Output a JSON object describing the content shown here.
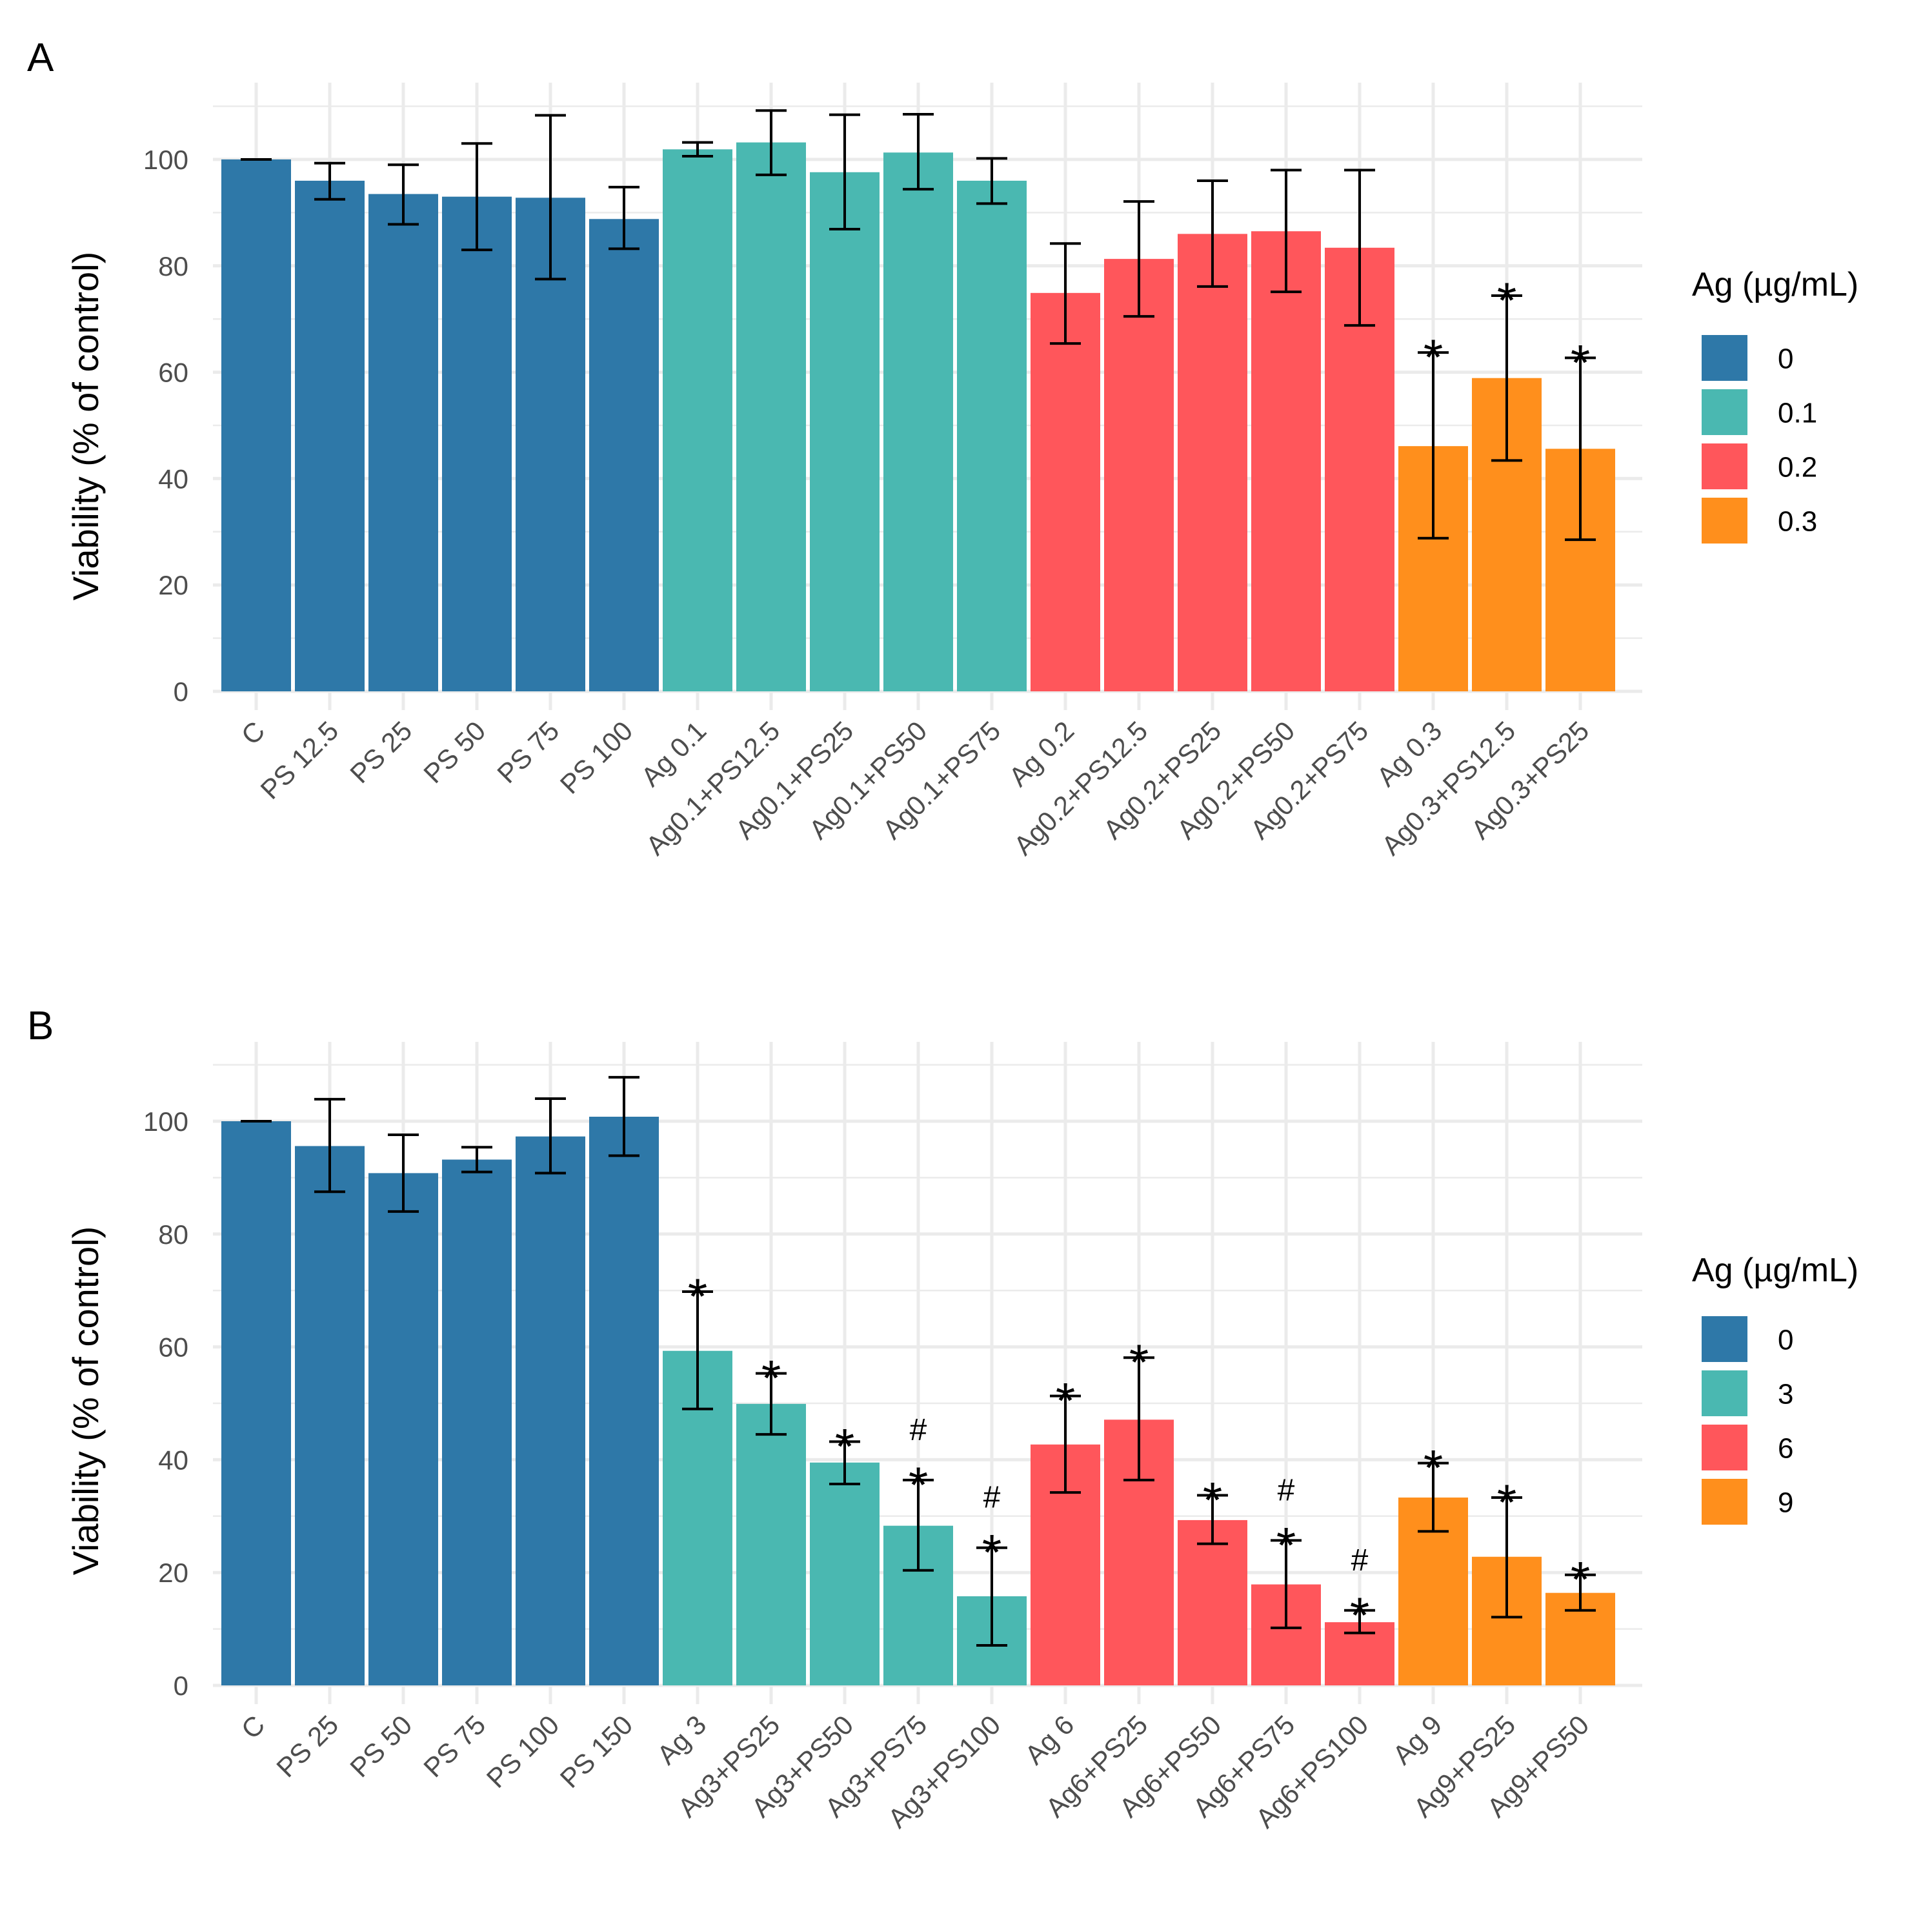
{
  "chart_data": [
    {
      "type": "bar",
      "panel": "A",
      "title": "",
      "xlabel": "",
      "ylabel": "Viability (% of control)",
      "ylim": [
        0,
        112
      ],
      "yticks": [
        0,
        20,
        40,
        60,
        80,
        100
      ],
      "grid": true,
      "legend": {
        "title": "Ag (µg/mL)",
        "placement": "right",
        "entries": [
          {
            "label": "0",
            "color": "#2E78A8"
          },
          {
            "label": "0.1",
            "color": "#4AB8B1"
          },
          {
            "label": "0.2",
            "color": "#FF565B"
          },
          {
            "label": "0.3",
            "color": "#FF8F1C"
          }
        ]
      },
      "categories": [
        "C",
        "PS 12.5",
        "PS 25",
        "PS 50",
        "PS 75",
        "PS 100",
        "Ag 0.1",
        "Ag0.1+PS12.5",
        "Ag0.1+PS25",
        "Ag0.1+PS50",
        "Ag0.1+PS75",
        "Ag 0.2",
        "Ag0.2+PS12.5",
        "Ag0.2+PS25",
        "Ag0.2+PS50",
        "Ag0.2+PS75",
        "Ag 0.3",
        "Ag0.3+PS12.5",
        "Ag0.3+PS25"
      ],
      "groups": [
        "0",
        "0",
        "0",
        "0",
        "0",
        "0",
        "0.1",
        "0.1",
        "0.1",
        "0.1",
        "0.1",
        "0.2",
        "0.2",
        "0.2",
        "0.2",
        "0.2",
        "0.3",
        "0.3",
        "0.3"
      ],
      "values": [
        100,
        96,
        93.5,
        93,
        92.8,
        88.8,
        101.9,
        103.2,
        97.6,
        101.3,
        96,
        74.9,
        81.3,
        86,
        86.5,
        83.4,
        46.1,
        58.9,
        45.6
      ],
      "err_low": [
        100,
        92.5,
        87.8,
        83,
        77.5,
        83.2,
        100.6,
        97.1,
        86.9,
        94.4,
        91.7,
        65.4,
        70.5,
        76.1,
        75.1,
        68.8,
        28.8,
        43.4,
        28.5
      ],
      "err_high": [
        100,
        99.3,
        99,
        103,
        108.3,
        94.8,
        103.2,
        109.2,
        108.4,
        108.5,
        100.2,
        84.2,
        92.1,
        96,
        98,
        98,
        63.7,
        74.4,
        62.7
      ],
      "annotations": [
        "",
        "",
        "",
        "",
        "",
        "",
        "",
        "",
        "",
        "",
        "",
        "",
        "",
        "",
        "",
        "",
        "*",
        "*",
        "*"
      ]
    },
    {
      "type": "bar",
      "panel": "B",
      "title": "",
      "xlabel": "",
      "ylabel": "Viability (% of control)",
      "ylim": [
        0,
        112
      ],
      "yticks": [
        0,
        20,
        40,
        60,
        80,
        100
      ],
      "grid": true,
      "legend": {
        "title": "Ag (µg/mL)",
        "placement": "right",
        "entries": [
          {
            "label": "0",
            "color": "#2E78A8"
          },
          {
            "label": "3",
            "color": "#4AB8B1"
          },
          {
            "label": "6",
            "color": "#FF565B"
          },
          {
            "label": "9",
            "color": "#FF8F1C"
          }
        ]
      },
      "categories": [
        "C",
        "PS 25",
        "PS 50",
        "PS 75",
        "PS 100",
        "PS 150",
        "Ag 3",
        "Ag3+PS25",
        "Ag3+PS50",
        "Ag3+PS75",
        "Ag3+PS100",
        "Ag 6",
        "Ag6+PS25",
        "Ag6+PS50",
        "Ag6+PS75",
        "Ag6+PS100",
        "Ag 9",
        "Ag9+PS25",
        "Ag9+PS50"
      ],
      "groups": [
        "0",
        "0",
        "0",
        "0",
        "0",
        "0",
        "3",
        "3",
        "3",
        "3",
        "3",
        "6",
        "6",
        "6",
        "6",
        "6",
        "9",
        "9",
        "9"
      ],
      "values": [
        100,
        95.6,
        90.8,
        93.2,
        97.3,
        100.8,
        59.3,
        49.9,
        39.5,
        28.3,
        15.8,
        42.7,
        47.1,
        29.3,
        17.9,
        11.2,
        33.3,
        22.8,
        16.4
      ],
      "err_low": [
        100,
        87.5,
        84,
        91,
        90.8,
        93.9,
        49,
        44.5,
        35.7,
        20.4,
        7.1,
        34.2,
        36.4,
        25.1,
        10.2,
        9.3,
        27.3,
        12.1,
        13.3
      ],
      "err_high": [
        100,
        103.9,
        97.6,
        95.4,
        104,
        107.8,
        69.8,
        55.3,
        43.2,
        36.4,
        24.4,
        51.3,
        58.1,
        33.7,
        25.7,
        13.3,
        39.4,
        33.3,
        19.6
      ],
      "annotations": [
        "",
        "",
        "",
        "",
        "",
        "",
        "*",
        "*",
        "*",
        "#*",
        "#*",
        "*",
        "*",
        "*",
        "#*",
        "#*",
        "*",
        "*",
        "*"
      ]
    }
  ],
  "panels": {
    "a": {
      "letter": "A"
    },
    "b": {
      "letter": "B"
    }
  }
}
